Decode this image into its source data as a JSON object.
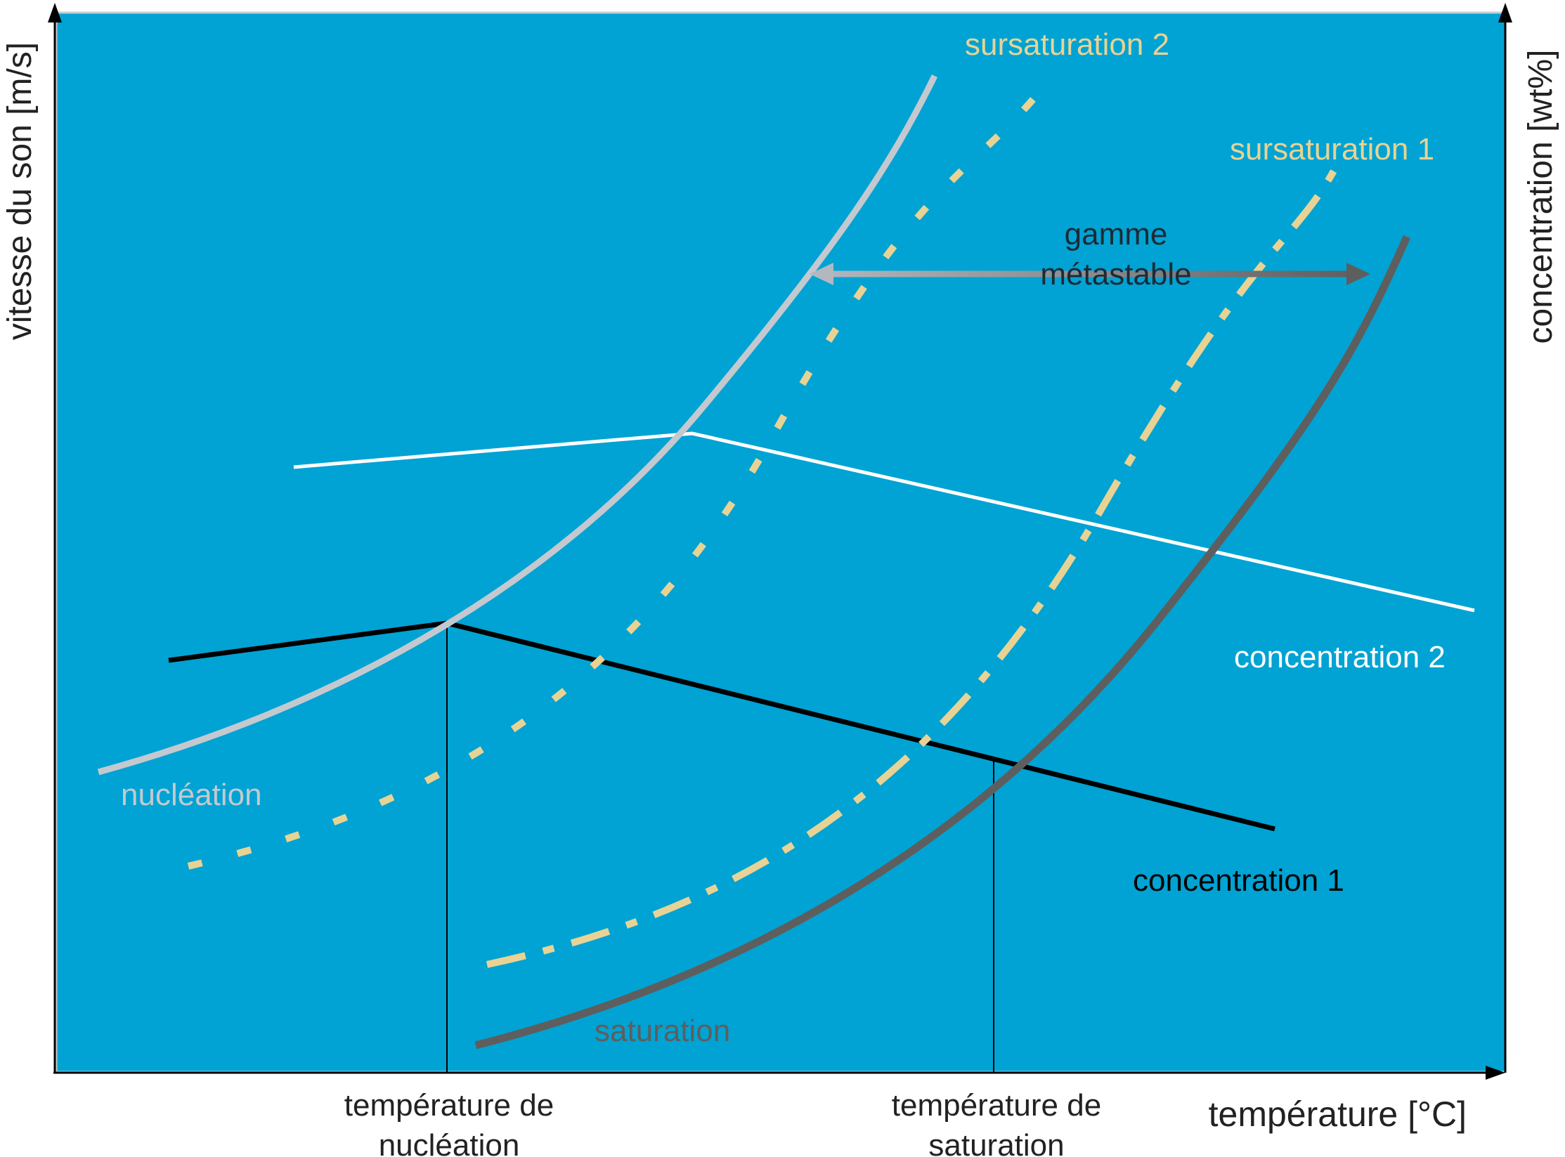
{
  "colors": {
    "background": "#00a3d3",
    "axis": "#000000",
    "nucleation": "#c4c9cf",
    "saturation": "#5e5e5e",
    "supersaturation": "#e8d394",
    "concentration_1": "#000000",
    "concentration_2": "#ffffff",
    "arrow_light": "#b2b8bf",
    "arrow_dark": "#5e5e5e"
  },
  "axes": {
    "y_left_label": "vitesse du son [m/s]",
    "y_right_label": "concentration [wt%]",
    "x_label": "température [°C]"
  },
  "x_ticks": {
    "nucleation_temp_line1": "température de",
    "nucleation_temp_line2": "nucléation",
    "saturation_temp_line1": "température de",
    "saturation_temp_line2": "saturation"
  },
  "curves": {
    "nucleation": "nucléation",
    "saturation": "saturation",
    "supersaturation_1": "sursaturation 1",
    "supersaturation_2": "sursaturation 2",
    "concentration_1": "concentration 1",
    "concentration_2": "concentration 2"
  },
  "metastable": {
    "line1": "gamme",
    "line2": "métastable"
  }
}
